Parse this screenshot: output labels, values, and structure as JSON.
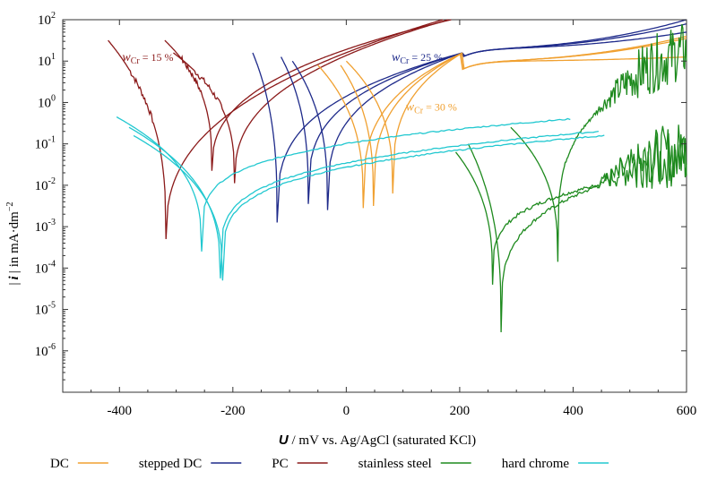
{
  "chart_data": {
    "type": "line",
    "title": "",
    "xlabel_symbol": "U",
    "xlabel_rest": " / mV vs. Ag/AgCl (saturated KCl)",
    "ylabel": "| i | in mA·dm⁻²",
    "ylabel_parts": {
      "bar_left": "|",
      "symbol": "i",
      "bar_right": "|",
      "rest": "in mA·dm",
      "exp": "−2"
    },
    "xlim": [
      -500,
      600
    ],
    "ylim_log10": [
      -7,
      2
    ],
    "yscale": "log",
    "x_ticks": [
      -400,
      -200,
      0,
      200,
      400,
      600
    ],
    "x_tick_labels": [
      "-400",
      "-200",
      "0",
      "200",
      "400",
      "600"
    ],
    "y_ticks_exp": [
      -6,
      -5,
      -4,
      -3,
      -2,
      -1,
      0,
      1,
      2
    ],
    "y_tick_labels": [
      {
        "base": "10",
        "exp": "-6"
      },
      {
        "base": "10",
        "exp": "-5"
      },
      {
        "base": "10",
        "exp": "-4"
      },
      {
        "base": "10",
        "exp": "-3"
      },
      {
        "base": "10",
        "exp": "-2"
      },
      {
        "base": "10",
        "exp": "-1"
      },
      {
        "base": "10",
        "exp": "0"
      },
      {
        "base": "10",
        "exp": "1"
      },
      {
        "base": "10",
        "exp": "2"
      }
    ],
    "legend": [
      {
        "label": "DC",
        "color": "#f0a030"
      },
      {
        "label": "stepped DC",
        "color": "#1e2a8a"
      },
      {
        "label": "PC",
        "color": "#8b1a1a"
      },
      {
        "label": "stainless steel",
        "color": "#1e8a1e"
      },
      {
        "label": "hard chrome",
        "color": "#22c8d0"
      }
    ],
    "annotations": [
      {
        "sym": "w",
        "sub": "Cr",
        "text": " = 15 %",
        "color": "#8b1a1a",
        "x": -395,
        "y": 1.0
      },
      {
        "sym": "w",
        "sub": "Cr",
        "text": " = 25 %",
        "color": "#1e2a8a",
        "x": 80,
        "y": 1.0
      },
      {
        "sym": "w",
        "sub": "Cr",
        "text": " = 30 %",
        "color": "#f0a030",
        "x": 105,
        "y": -0.2
      }
    ],
    "series": [
      {
        "name": "PC",
        "color": "#8b1a1a",
        "curves": [
          {
            "ecorr": -318,
            "log_i_corr": -3.3,
            "start": -420,
            "end": 170,
            "start_log_i": 1.5,
            "end_log_i": 2.0
          },
          {
            "ecorr": -237,
            "log_i_corr": -1.65,
            "start": -320,
            "end": 185,
            "start_log_i": 1.5,
            "end_log_i": 2.0
          },
          {
            "ecorr": -197,
            "log_i_corr": -1.95,
            "start": -305,
            "end": 180,
            "start_log_i": 1.2,
            "end_log_i": 2.0
          }
        ]
      },
      {
        "name": "stepped DC",
        "color": "#1e2a8a",
        "curves": [
          {
            "ecorr": -122,
            "log_i_corr": -2.9,
            "start": -165,
            "end": 600,
            "start_log_i": 1.2,
            "end_log_i": 2.0
          },
          {
            "ecorr": -67,
            "log_i_corr": -2.45,
            "start": -115,
            "end": 600,
            "start_log_i": 1.1,
            "end_log_i": 1.9
          },
          {
            "ecorr": -33,
            "log_i_corr": -2.6,
            "start": -95,
            "end": 600,
            "start_log_i": 1.0,
            "end_log_i": 1.7
          }
        ]
      },
      {
        "name": "DC",
        "color": "#f0a030",
        "curves": [
          {
            "ecorr": 30,
            "log_i_corr": -2.55,
            "start": -50,
            "end": 600,
            "start_log_i": 0.9,
            "end_log_i": 1.6
          },
          {
            "ecorr": 48,
            "log_i_corr": -2.5,
            "start": -10,
            "end": 600,
            "start_log_i": 0.9,
            "end_log_i": 1.55
          },
          {
            "ecorr": 82,
            "log_i_corr": -2.2,
            "start": 0,
            "end": 600,
            "start_log_i": 1.0,
            "end_log_i": 1.1
          }
        ]
      },
      {
        "name": "stainless steel",
        "color": "#1e8a1e",
        "curves": [
          {
            "ecorr": 258,
            "log_i_corr": -4.4,
            "start": 193,
            "end": 600,
            "start_log_i": -1.2,
            "end_log_i": -1.6
          },
          {
            "ecorr": 273,
            "log_i_corr": -5.55,
            "start": 215,
            "end": 600,
            "start_log_i": -1.0,
            "end_log_i": -1.4
          },
          {
            "ecorr": 373,
            "log_i_corr": -3.85,
            "start": 290,
            "end": 600,
            "start_log_i": -0.6,
            "end_log_i": 1.0
          }
        ]
      },
      {
        "name": "hard chrome",
        "color": "#22c8d0",
        "curves": [
          {
            "ecorr": -255,
            "log_i_corr": -3.6,
            "start": -405,
            "end": 395,
            "start_log_i": -0.35,
            "end_log_i": -0.4
          },
          {
            "ecorr": -222,
            "log_i_corr": -4.25,
            "start": -383,
            "end": 445,
            "start_log_i": -0.6,
            "end_log_i": -0.7
          },
          {
            "ecorr": -218,
            "log_i_corr": -4.3,
            "start": -375,
            "end": 455,
            "start_log_i": -0.8,
            "end_log_i": -0.8
          }
        ]
      }
    ]
  }
}
